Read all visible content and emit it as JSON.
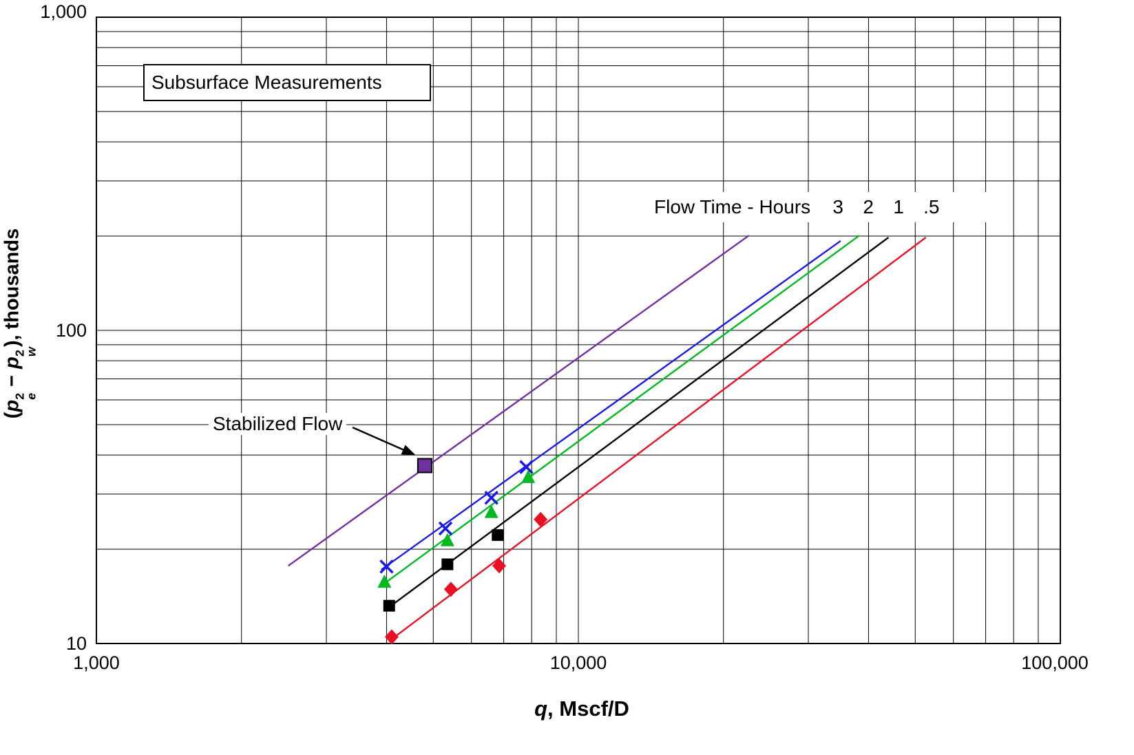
{
  "title_box": {
    "label": "Subsurface Measurements"
  },
  "annotation": {
    "label": "Stabilized Flow"
  },
  "legend": {
    "title": "Flow Time - Hours",
    "items": [
      "3",
      "2",
      "1",
      ".5"
    ]
  },
  "axes": {
    "x": {
      "ticks": [
        "1,000",
        "10,000",
        "100,000"
      ],
      "label_var": "q",
      "label_rest": ", Mscf/D"
    },
    "y": {
      "ticks": [
        "1,000",
        "100",
        "10"
      ],
      "label_parts": {
        "open": "(",
        "p1": "p",
        "sup1": "2",
        "sub1": "e",
        "minus": "−",
        "p2": "p",
        "sup2": "2",
        "sub2": "w",
        "close": "), thousands"
      }
    }
  },
  "chart_data": {
    "type": "scatter",
    "title": "Subsurface Measurements",
    "xlabel": "q, Mscf/D",
    "ylabel": "(pe^2 - pw^2), thousands",
    "x_scale": "log",
    "y_scale": "log",
    "xlim": [
      1000,
      100000
    ],
    "ylim": [
      10,
      1000
    ],
    "grid": "solid black major and minor log gridlines, both axes",
    "legend_title": "Flow Time - Hours",
    "legend_position": "top-right inside plot",
    "series": [
      {
        "name": "Flow time 3 hours",
        "legend_label": "3",
        "marker": "x",
        "color": "#1a1ae6",
        "points": [
          [
            4000,
            17.6
          ],
          [
            5300,
            23.3
          ],
          [
            6600,
            29.2
          ],
          [
            7800,
            36.6
          ]
        ],
        "trend_line": [
          [
            3900,
            17.2
          ],
          [
            35000,
            193
          ]
        ]
      },
      {
        "name": "Flow time 2 hours",
        "legend_label": "2",
        "marker": "triangle",
        "color": "#00b820",
        "points": [
          [
            3960,
            15.7
          ],
          [
            5350,
            21.3
          ],
          [
            6600,
            26.2
          ],
          [
            7870,
            33.9
          ]
        ],
        "trend_line": [
          [
            3880,
            15.2
          ],
          [
            38300,
            201
          ]
        ]
      },
      {
        "name": "Flow time 1 hour",
        "legend_label": "1",
        "marker": "square",
        "color": "#000000",
        "points": [
          [
            4050,
            13.2
          ],
          [
            5350,
            17.9
          ],
          [
            6800,
            22.2
          ]
        ],
        "trend_line": [
          [
            3950,
            12.7
          ],
          [
            44000,
            198
          ]
        ]
      },
      {
        "name": "Flow time 0.5 hours",
        "legend_label": ".5",
        "marker": "diamond",
        "color": "#e81123",
        "points": [
          [
            4100,
            10.5
          ],
          [
            5440,
            14.9
          ],
          [
            6850,
            17.7
          ],
          [
            8350,
            24.9
          ]
        ],
        "trend_line": [
          [
            4090,
            10.3
          ],
          [
            52600,
            198
          ]
        ]
      },
      {
        "name": "Stabilized flow",
        "legend_label": "",
        "marker": "filled-square",
        "color": "#7030a0",
        "edge_color": "#000000",
        "points": [
          [
            4800,
            37
          ]
        ],
        "trend_line": [
          [
            2500,
            17.7
          ],
          [
            22600,
            201
          ]
        ]
      }
    ],
    "annotations": [
      {
        "text": "Stabilized Flow",
        "target_point": [
          4800,
          37
        ]
      }
    ]
  }
}
